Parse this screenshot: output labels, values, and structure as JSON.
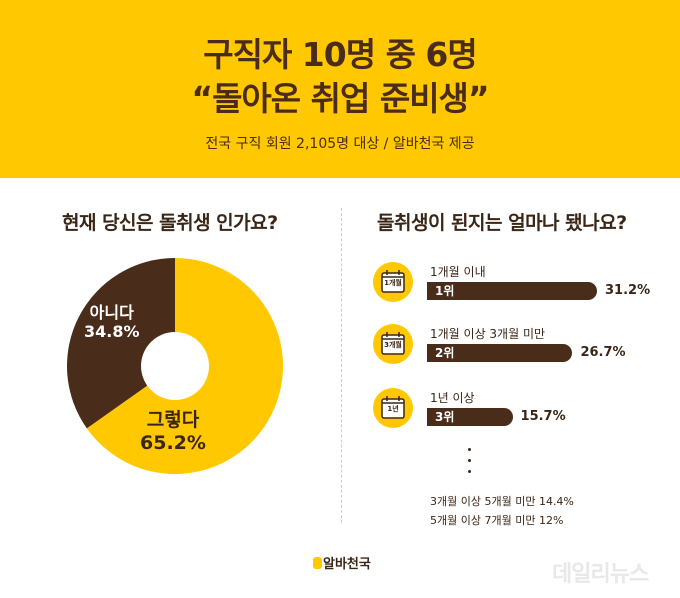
{
  "header": {
    "title_line1": "구직자 10명 중 6명",
    "title_line2": "“돌아온 취업 준비생”",
    "subtitle": "전국 구직 회원 2,105명 대상 / 알바천국 제공"
  },
  "left": {
    "question": "현재 당신은 돌취생 인가요?"
  },
  "right": {
    "question": "돌취생이 된지는 얼마나 됐나요?",
    "extra_lines": [
      "3개월 이상 5개월 미만 14.4%",
      "5개월 이상 7개월 미만 12%"
    ]
  },
  "icons": [
    "1개월",
    "3개월",
    "1년"
  ],
  "footer": {
    "logo": "알바천국",
    "watermark": "데일리뉴스"
  },
  "colors": {
    "yellow": "#FFC800",
    "brown": "#4a2c1a"
  },
  "chart_data": [
    {
      "type": "pie",
      "title": "현재 당신은 돌취생 인가요?",
      "slices": [
        {
          "label": "그렇다",
          "value": 65.2,
          "display": "65.2%",
          "color": "#FFC800"
        },
        {
          "label": "아니다",
          "value": 34.8,
          "display": "34.8%",
          "color": "#4a2c1a"
        }
      ]
    },
    {
      "type": "bar",
      "title": "돌취생이 된지는 얼마나 됐나요?",
      "categories": [
        "1개월 이내",
        "1개월 이상 3개월 미만",
        "1년 이상"
      ],
      "ranks": [
        "1위",
        "2위",
        "3위"
      ],
      "values": [
        31.2,
        26.7,
        15.7
      ],
      "labels": [
        "31.2%",
        "26.7%",
        "15.7%"
      ]
    }
  ]
}
